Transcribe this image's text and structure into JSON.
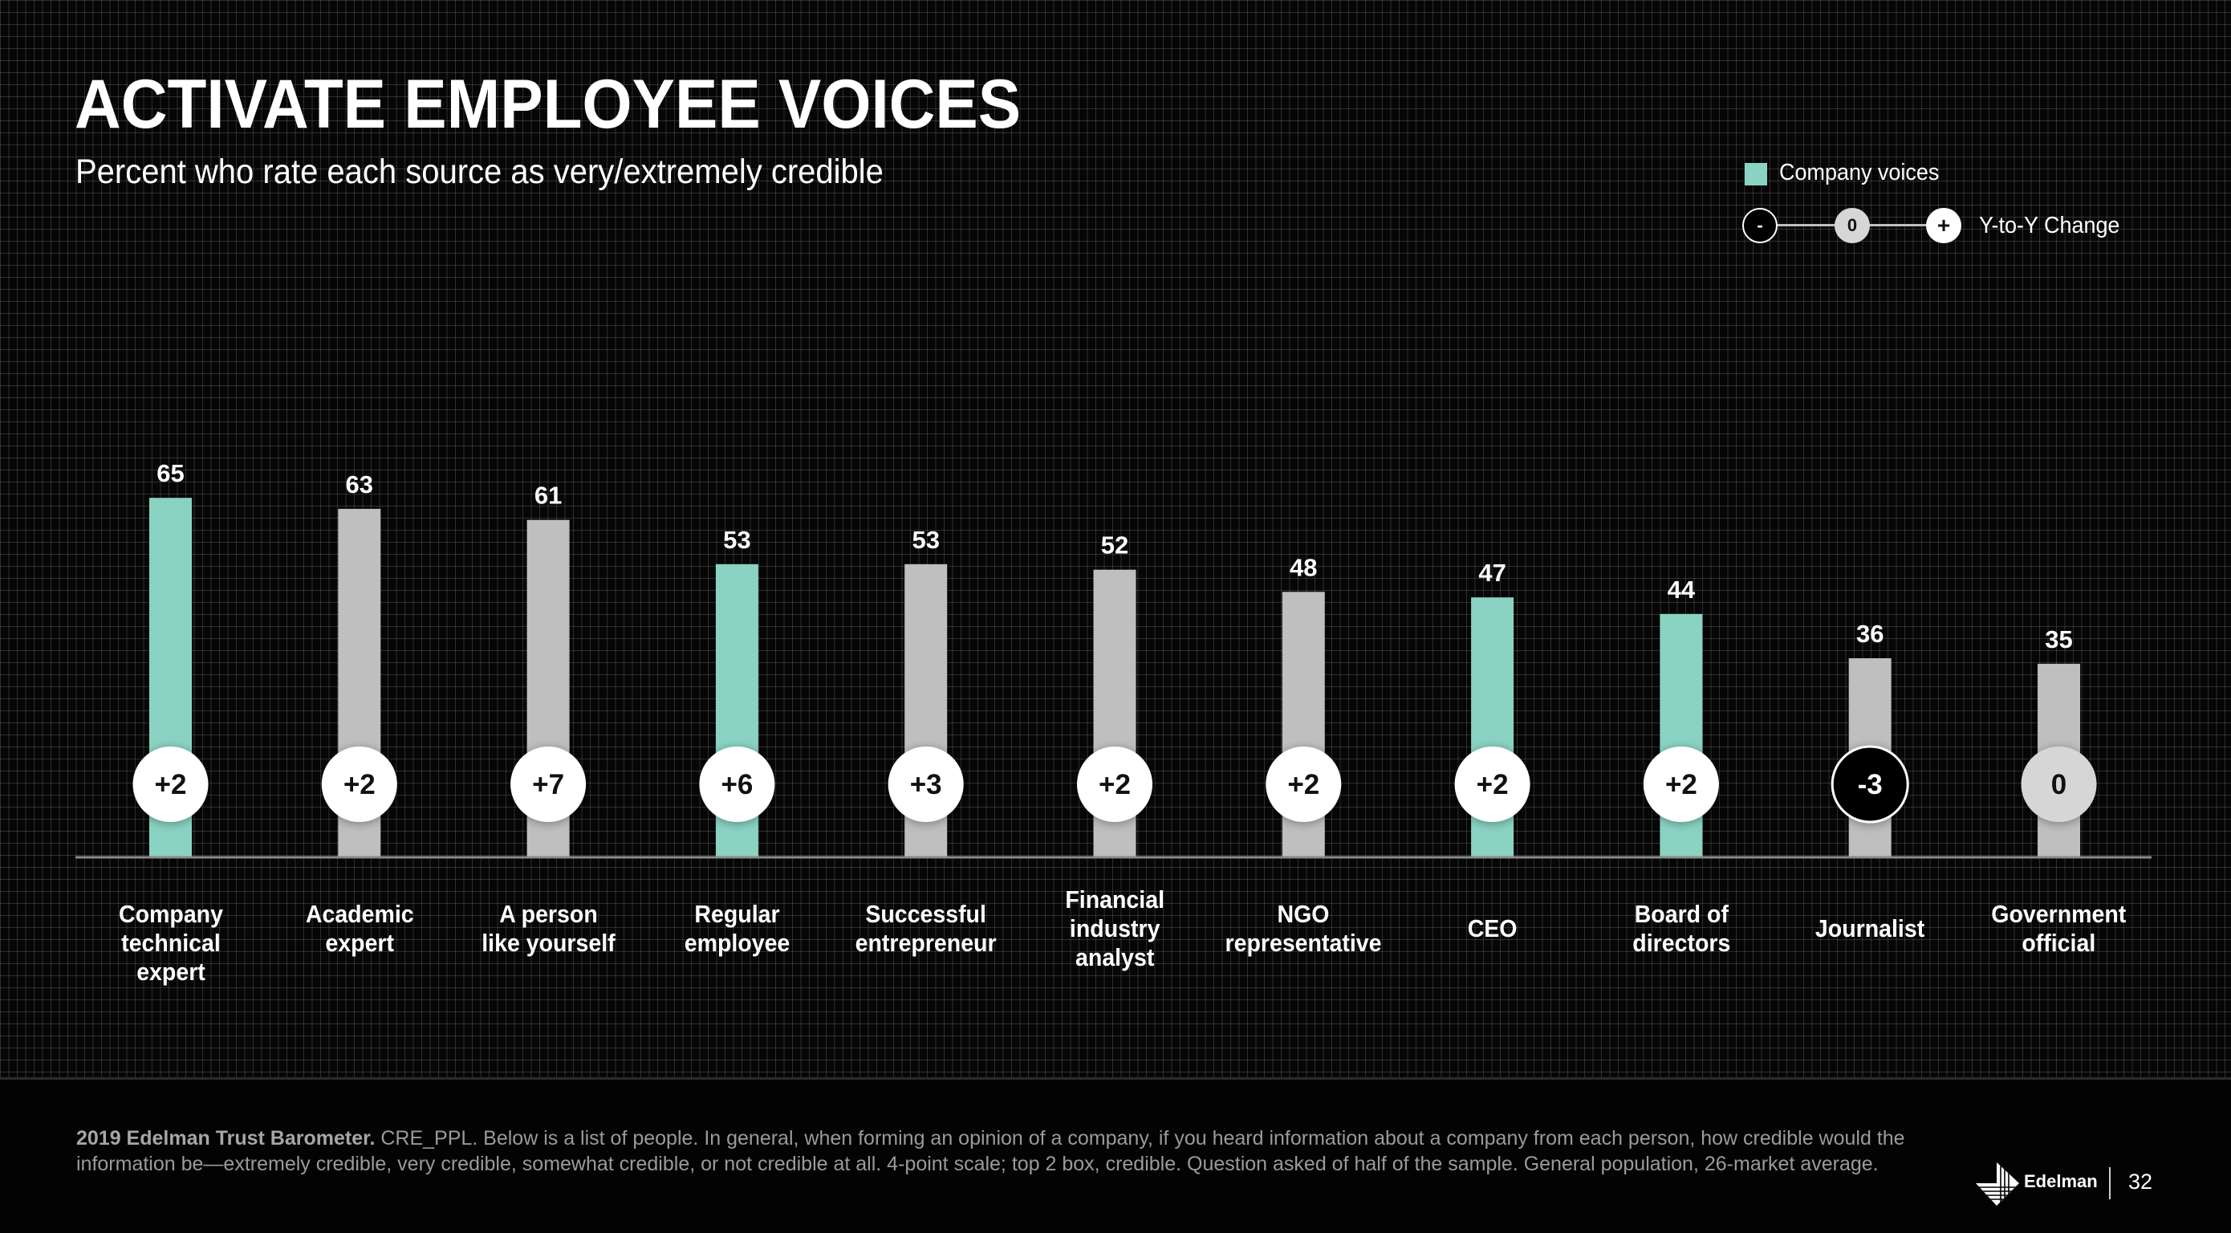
{
  "header": {
    "title": "ACTIVATE EMPLOYEE VOICES",
    "subtitle": "Percent who rate each source as very/extremely credible"
  },
  "legend": {
    "company_voices_label": "Company voices",
    "scale_minus": "-",
    "scale_zero": "0",
    "scale_plus": "+",
    "scale_label": "Y-to-Y Change"
  },
  "colors": {
    "company_voice": "#8ad3c3",
    "other_voice": "#bfbfbf",
    "baseline": "#8a8a8a",
    "positive_change_bg": "#ffffff",
    "negative_change_bg": "#000000",
    "zero_change_bg": "#d6d6d6"
  },
  "chart_data": {
    "type": "bar",
    "title": "ACTIVATE EMPLOYEE VOICES",
    "subtitle": "Percent who rate each source as very/extremely credible",
    "xlabel": "",
    "ylabel": "",
    "ylim": [
      0,
      100
    ],
    "grid": false,
    "legend": {
      "position": "top-right",
      "entries": [
        "Company voices",
        "Y-to-Y Change"
      ]
    },
    "categories": [
      "Company technical expert",
      "Academic expert",
      "A person like yourself",
      "Regular employee",
      "Successful entrepreneur",
      "Financial industry analyst",
      "NGO representative",
      "CEO",
      "Board of directors",
      "Journalist",
      "Government official"
    ],
    "category_labels": [
      "Company\ntechnical expert",
      "Academic\nexpert",
      "A person\nlike yourself",
      "Regular\nemployee",
      "Successful\nentrepreneur",
      "Financial\nindustry\nanalyst",
      "NGO\nrepresentative",
      "CEO",
      "Board of\ndirectors",
      "Journalist",
      "Government\nofficial"
    ],
    "values": [
      65,
      63,
      61,
      53,
      53,
      52,
      48,
      47,
      44,
      36,
      35
    ],
    "company_voice": [
      true,
      false,
      false,
      true,
      false,
      false,
      false,
      true,
      true,
      false,
      false
    ],
    "yoy_change": [
      2,
      2,
      7,
      6,
      3,
      2,
      2,
      2,
      2,
      -3,
      0
    ],
    "yoy_change_labels": [
      "+2",
      "+2",
      "+7",
      "+6",
      "+3",
      "+2",
      "+2",
      "+2",
      "+2",
      "-3",
      "0"
    ]
  },
  "footer": {
    "source_bold": "2019 Edelman Trust Barometer.",
    "source_text": " CRE_PPL. Below is a list of people. In general, when forming an opinion of a company, if you heard information about a company from each person, how credible would the information be—extremely credible, very credible, somewhat credible, or not credible at all. 4-point scale; top 2 box, credible. Question asked of half of the sample. General population, 26-market average.",
    "brand": "Edelman",
    "page_number": "32"
  }
}
